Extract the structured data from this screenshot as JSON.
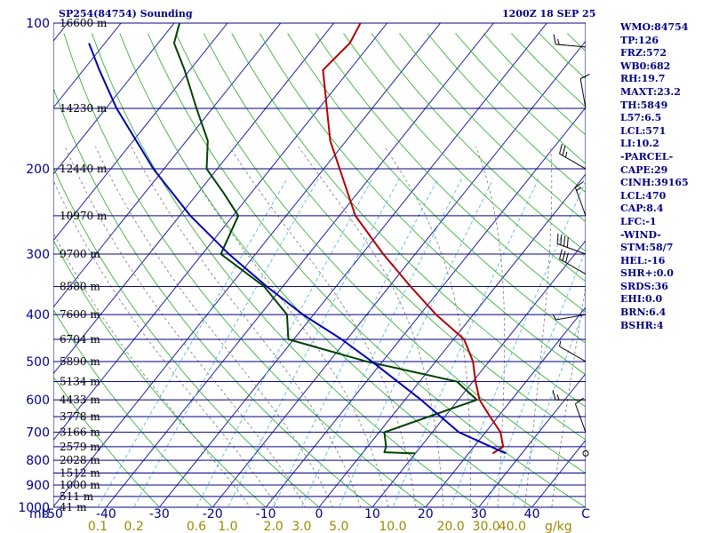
{
  "header": {
    "station": "SP254(84754) Sounding",
    "time": "1200Z 18 SEP 25"
  },
  "indices": [
    "WMO:84754",
    "TP:126",
    "FRZ:572",
    "WB0:682",
    "RH:19.7",
    "MAXT:23.2",
    "TH:5849",
    "L57:6.5",
    "LCL:571",
    "LI:10.2",
    "-PARCEL-",
    "CAPE:29",
    "CINH:39165",
    "LCL:470",
    "CAP:8.4",
    "LFC:-1",
    "-WIND-",
    "STM:58/7",
    "HEL:-16",
    "SHR+:0.0",
    "SRDS:36",
    "EHI:0.0",
    "BRN:6.4",
    "BSHR:4"
  ],
  "chart_data": {
    "type": "line",
    "chart_kind": "skew-T log-P sounding",
    "y_scale": "log",
    "x_ticks": [
      "-50",
      "-40",
      "-30",
      "-20",
      "-10",
      "0",
      "10",
      "20",
      "30",
      "40",
      "C"
    ],
    "x_unit_label": "mb",
    "pressure_levels": [
      {
        "p": 100,
        "label": "100",
        "height": "16600 m"
      },
      {
        "p": 150,
        "label": "",
        "height": "14230 m"
      },
      {
        "p": 200,
        "label": "200",
        "height": "12440 m"
      },
      {
        "p": 250,
        "label": "",
        "height": "10970 m"
      },
      {
        "p": 300,
        "label": "300",
        "height": "9700 m"
      },
      {
        "p": 350,
        "label": "",
        "height": "8580 m"
      },
      {
        "p": 400,
        "label": "400",
        "height": "7600 m"
      },
      {
        "p": 450,
        "label": "",
        "height": "6704 m"
      },
      {
        "p": 500,
        "label": "500",
        "height": "5890 m"
      },
      {
        "p": 550,
        "label": "",
        "height": "5134 m"
      },
      {
        "p": 600,
        "label": "600",
        "height": "4433 m"
      },
      {
        "p": 650,
        "label": "",
        "height": "3778 m"
      },
      {
        "p": 700,
        "label": "700",
        "height": "3166 m"
      },
      {
        "p": 750,
        "label": "",
        "height": "2579 m"
      },
      {
        "p": 800,
        "label": "800",
        "height": "2028 m"
      },
      {
        "p": 850,
        "label": "",
        "height": "1512 m"
      },
      {
        "p": 900,
        "label": "900",
        "height": "1000 m"
      },
      {
        "p": 950,
        "label": "",
        "height": "511 m"
      },
      {
        "p": 1000,
        "label": "1000",
        "height": "41 m"
      }
    ],
    "mixing_ratio_ticks": [
      {
        "w": 0.1,
        "label": "0.1"
      },
      {
        "w": 0.2,
        "label": "0.2"
      },
      {
        "w": 0.6,
        "label": "0.6"
      },
      {
        "w": 1.0,
        "label": "1.0"
      },
      {
        "w": 2.0,
        "label": "2.0"
      },
      {
        "w": 3.0,
        "label": "3.0"
      },
      {
        "w": 5.0,
        "label": "5.0"
      },
      {
        "w": 10.0,
        "label": "10.0"
      },
      {
        "w": 20.0,
        "label": "20.0"
      },
      {
        "w": 30.0,
        "label": "30.0"
      },
      {
        "w": 40.0,
        "label": "40.0"
      }
    ],
    "mixing_ratio_unit": "g/kg",
    "series": [
      {
        "role": "temperature",
        "color": "#b00000",
        "points": [
          {
            "p": 774,
            "t": 24.5
          },
          {
            "p": 750,
            "t": 25.5
          },
          {
            "p": 700,
            "t": 22.8
          },
          {
            "p": 650,
            "t": 18.5
          },
          {
            "p": 600,
            "t": 14.0
          },
          {
            "p": 550,
            "t": 10.5
          },
          {
            "p": 500,
            "t": 7.0
          },
          {
            "p": 450,
            "t": 2.0
          },
          {
            "p": 400,
            "t": -7.0
          },
          {
            "p": 350,
            "t": -16.0
          },
          {
            "p": 300,
            "t": -26.0
          },
          {
            "p": 250,
            "t": -37.0
          },
          {
            "p": 200,
            "t": -47.0
          },
          {
            "p": 175,
            "t": -53.0
          },
          {
            "p": 150,
            "t": -58.5
          },
          {
            "p": 125,
            "t": -65.0
          },
          {
            "p": 110,
            "t": -64.0
          },
          {
            "p": 100,
            "t": -65.0
          }
        ]
      },
      {
        "role": "dewpoint",
        "color": "#004000",
        "points": [
          {
            "p": 774,
            "t": 10.0
          },
          {
            "p": 770,
            "t": 4.0
          },
          {
            "p": 750,
            "t": 3.5
          },
          {
            "p": 700,
            "t": 1.0
          },
          {
            "p": 650,
            "t": 7.0
          },
          {
            "p": 600,
            "t": 13.5
          },
          {
            "p": 550,
            "t": 7.0
          },
          {
            "p": 500,
            "t": -13.0
          },
          {
            "p": 450,
            "t": -31.0
          },
          {
            "p": 400,
            "t": -35.0
          },
          {
            "p": 350,
            "t": -43.5
          },
          {
            "p": 300,
            "t": -56.5
          },
          {
            "p": 250,
            "t": -59.0
          },
          {
            "p": 225,
            "t": -65.0
          },
          {
            "p": 200,
            "t": -72.0
          },
          {
            "p": 175,
            "t": -76.0
          },
          {
            "p": 150,
            "t": -83.0
          },
          {
            "p": 125,
            "t": -91.0
          },
          {
            "p": 110,
            "t": -97.0
          },
          {
            "p": 100,
            "t": -99.0
          }
        ]
      },
      {
        "role": "parcel",
        "color": "#0000b0",
        "points": [
          {
            "p": 774,
            "t": 27.0
          },
          {
            "p": 700,
            "t": 15.0
          },
          {
            "p": 600,
            "t": 3.0
          },
          {
            "p": 500,
            "t": -12.0
          },
          {
            "p": 450,
            "t": -21.0
          },
          {
            "p": 400,
            "t": -32.0
          },
          {
            "p": 350,
            "t": -43.0
          },
          {
            "p": 300,
            "t": -55.0
          },
          {
            "p": 250,
            "t": -68.0
          },
          {
            "p": 200,
            "t": -82.0
          },
          {
            "p": 150,
            "t": -98.0
          },
          {
            "p": 125,
            "t": -107.0
          },
          {
            "p": 110,
            "t": -113.0
          }
        ]
      }
    ],
    "wind_barbs": [
      {
        "p": 112,
        "dir": 275,
        "spd": 15
      },
      {
        "p": 150,
        "dir": 350,
        "spd": 10
      },
      {
        "p": 200,
        "dir": 300,
        "spd": 25
      },
      {
        "p": 250,
        "dir": 340,
        "spd": 15
      },
      {
        "p": 300,
        "dir": 290,
        "spd": 40
      },
      {
        "p": 330,
        "dir": 300,
        "spd": 30
      },
      {
        "p": 400,
        "dir": 260,
        "spd": 5
      },
      {
        "p": 500,
        "dir": 300,
        "spd": 5
      },
      {
        "p": 600,
        "dir": 270,
        "spd": 15
      },
      {
        "p": 700,
        "dir": 340,
        "spd": 10
      },
      {
        "p": 774,
        "dir": 0,
        "spd": 0
      }
    ]
  }
}
